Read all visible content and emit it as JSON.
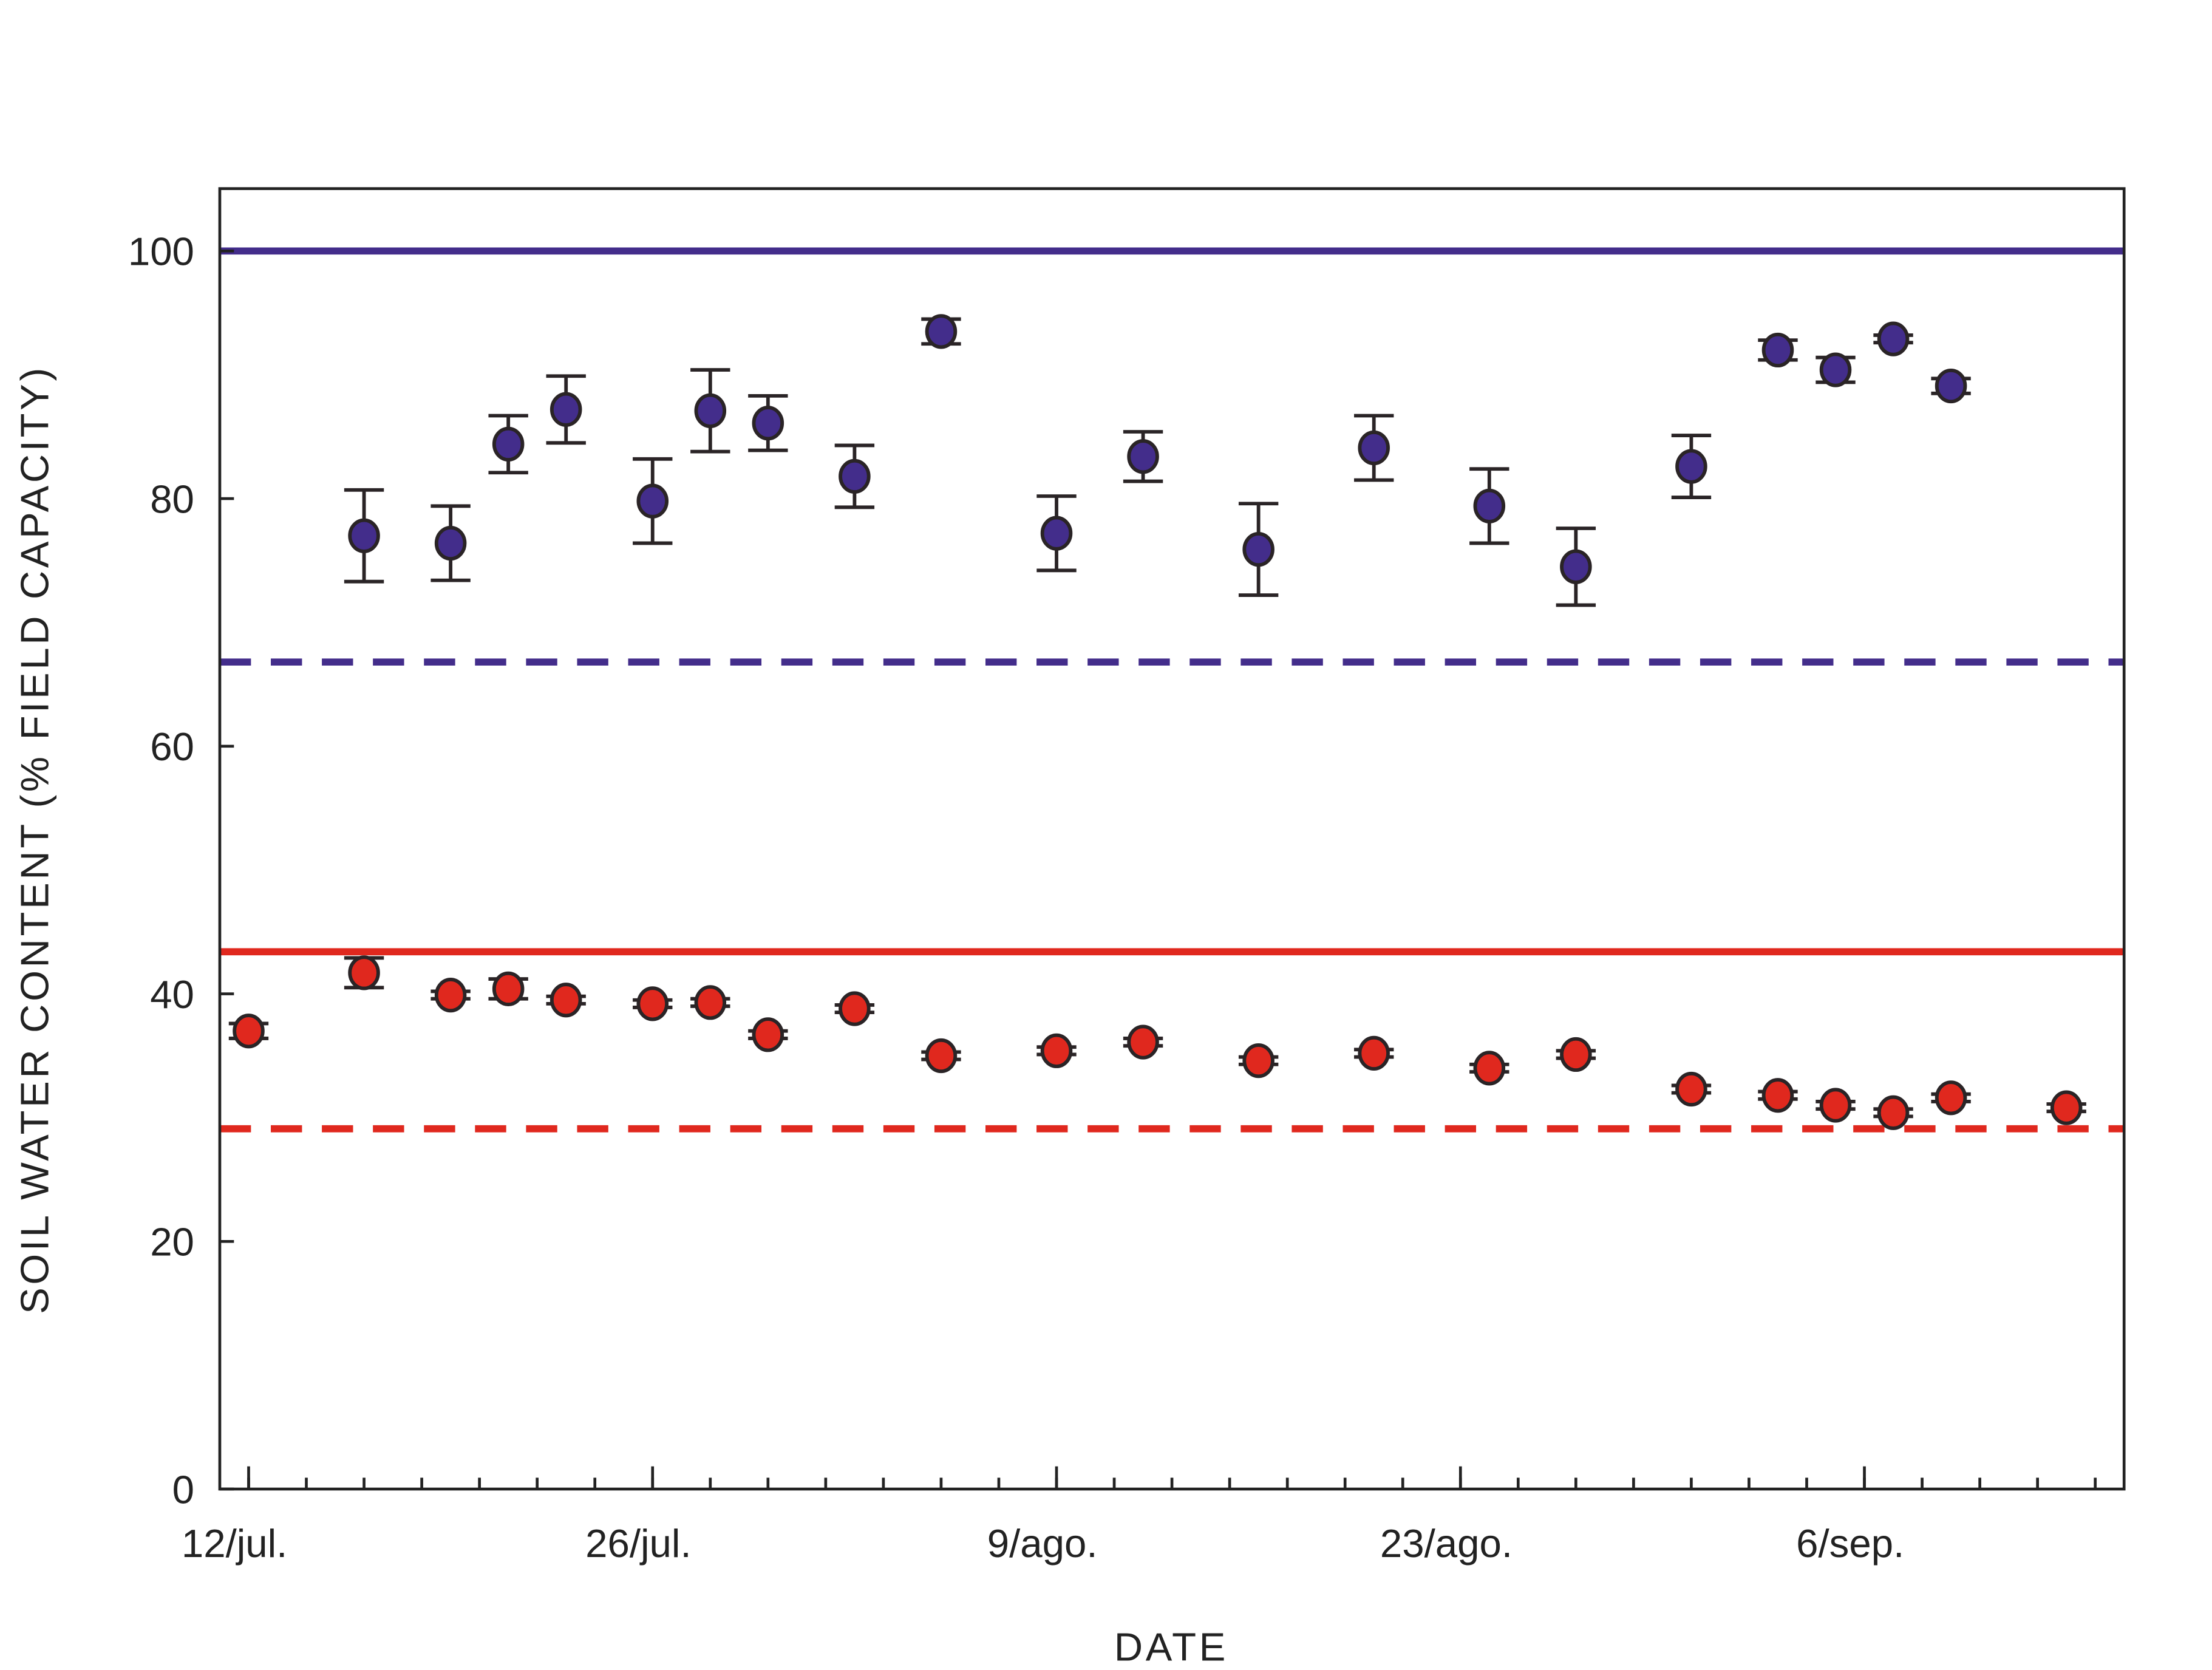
{
  "chart_data": {
    "type": "scatter",
    "title": "",
    "xlabel": "DATE",
    "ylabel": "SOIL WATER CONTENT (% FIELD CAPACITY)",
    "x_units": "days since 12/jul.",
    "xlim": [
      -1,
      65
    ],
    "ylim": [
      0,
      105
    ],
    "yticks": [
      0,
      20,
      40,
      60,
      80,
      100
    ],
    "ytick_labels": [
      "0",
      "20",
      "40",
      "60",
      "80",
      "100"
    ],
    "xticks_major": [
      0,
      14,
      28,
      42,
      56
    ],
    "xtick_labels": [
      "12/jul.",
      "26/jul.",
      "9/ago.",
      "23/ago.",
      "6/sep."
    ],
    "xticks_minor_step": 2,
    "grid": false,
    "legend": "none",
    "series": [
      {
        "name": "blue",
        "color": "#432D8B",
        "x": [
          4,
          7,
          9,
          11,
          14,
          16,
          18,
          21,
          24,
          28,
          31,
          35,
          39,
          43,
          46,
          50,
          53,
          55,
          57,
          59
        ],
        "y": [
          77.0,
          76.4,
          84.4,
          87.2,
          79.8,
          87.1,
          86.1,
          81.8,
          93.5,
          77.2,
          83.4,
          75.9,
          84.1,
          79.4,
          74.5,
          82.6,
          92.0,
          90.4,
          92.9,
          89.1
        ],
        "err": [
          3.7,
          3.0,
          2.3,
          2.7,
          3.4,
          3.3,
          2.2,
          2.5,
          1.0,
          3.0,
          2.0,
          3.7,
          2.6,
          3.0,
          3.1,
          2.5,
          0.8,
          1.0,
          0.3,
          0.6
        ]
      },
      {
        "name": "red",
        "color": "#E0281E",
        "x": [
          0,
          4,
          7,
          9,
          11,
          14,
          16,
          18,
          21,
          24,
          28,
          31,
          35,
          39,
          43,
          46,
          50,
          53,
          55,
          57,
          59,
          63
        ],
        "y": [
          37.0,
          41.7,
          39.9,
          40.4,
          39.5,
          39.2,
          39.3,
          36.7,
          38.8,
          35.0,
          35.4,
          36.1,
          34.6,
          35.2,
          34.0,
          35.1,
          32.3,
          31.8,
          31.0,
          30.4,
          31.6,
          30.8
        ],
        "err": [
          0.6,
          1.2,
          0.3,
          0.8,
          0.3,
          0.3,
          0.3,
          0.3,
          0.3,
          0.3,
          0.3,
          0.3,
          0.3,
          0.3,
          0.3,
          0.3,
          0.3,
          0.3,
          0.3,
          0.3,
          0.3,
          0.3
        ]
      }
    ],
    "reference_lines": [
      {
        "name": "blue-solid",
        "y": 100,
        "color": "#432D8B",
        "style": "solid"
      },
      {
        "name": "blue-dashed",
        "y": 66.8,
        "color": "#432D8B",
        "style": "dashed"
      },
      {
        "name": "red-solid",
        "y": 43.4,
        "color": "#E0281E",
        "style": "solid"
      },
      {
        "name": "red-dashed",
        "y": 29.1,
        "color": "#E0281E",
        "style": "dashed"
      }
    ]
  }
}
